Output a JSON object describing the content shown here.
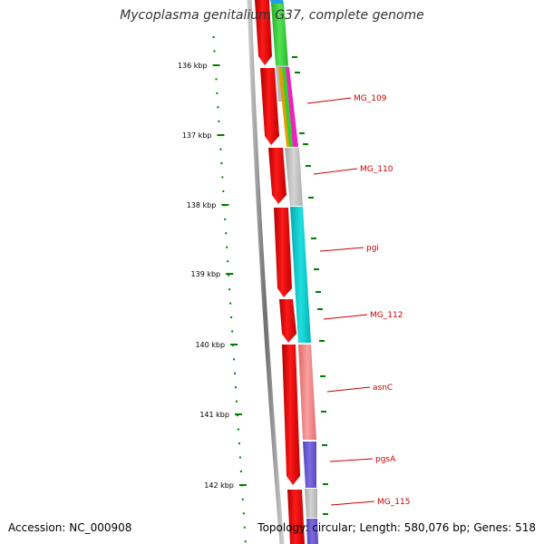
{
  "title": "Mycoplasma genitalium G37, complete genome",
  "accession_text": "Accession: NC_000908",
  "stats_text": "Topology: circular; Length: 580,076 bp; Genes: 518",
  "axis": {
    "unit": "kbp",
    "ticks": [
      "136 kbp",
      "137 kbp",
      "138 kbp",
      "139 kbp",
      "140 kbp",
      "141 kbp",
      "142 kbp"
    ]
  },
  "colors": {
    "gene_track": "#ff0000",
    "label": "#cc0000",
    "tick": "#008000",
    "backbone": "#808080",
    "gray_segment": "#c0c0c0",
    "cyan_segment": "#00cccc",
    "pink_segment": "#f08080",
    "purple_segment": "#6a5acd",
    "green_segment": "#33cc33",
    "blue_segment": "#1f9fe0",
    "magenta_segment": "#ee22bb"
  },
  "genes": [
    {
      "label": "MG_109"
    },
    {
      "label": "MG_110"
    },
    {
      "label": "pgi"
    },
    {
      "label": "MG_112"
    },
    {
      "label": "asnC"
    },
    {
      "label": "pgsA"
    },
    {
      "label": "MG_115"
    }
  ]
}
